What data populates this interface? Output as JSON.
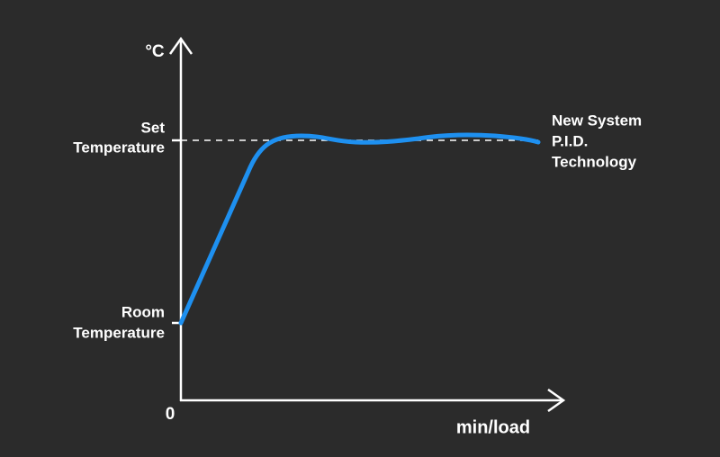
{
  "axis": {
    "y_unit": "°C",
    "x_label": "min/load",
    "origin": "0"
  },
  "levels": {
    "set_temperature": [
      "Set",
      "Temperature"
    ],
    "room_temperature": [
      "Room",
      "Temperature"
    ]
  },
  "curve_label": [
    "New System",
    "P.I.D.",
    "Technology"
  ]
}
